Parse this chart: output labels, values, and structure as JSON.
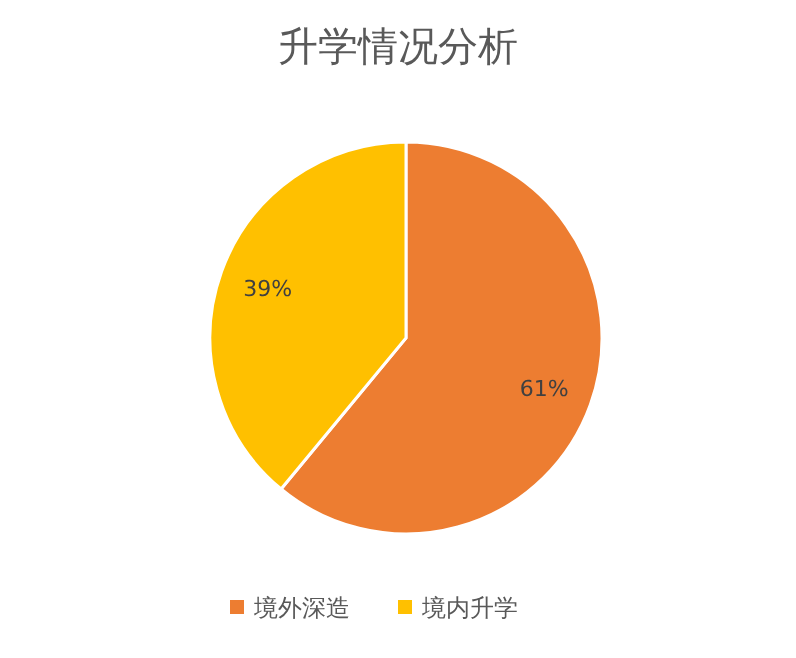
{
  "chart_data": {
    "type": "pie",
    "title": "升学情况分析",
    "categories": [
      "境外深造",
      "境内升学"
    ],
    "values": [
      61,
      39
    ],
    "colors": [
      "#ed7d31",
      "#ffc000"
    ],
    "value_labels": [
      "61%",
      "39%"
    ],
    "legend": "bottom"
  }
}
